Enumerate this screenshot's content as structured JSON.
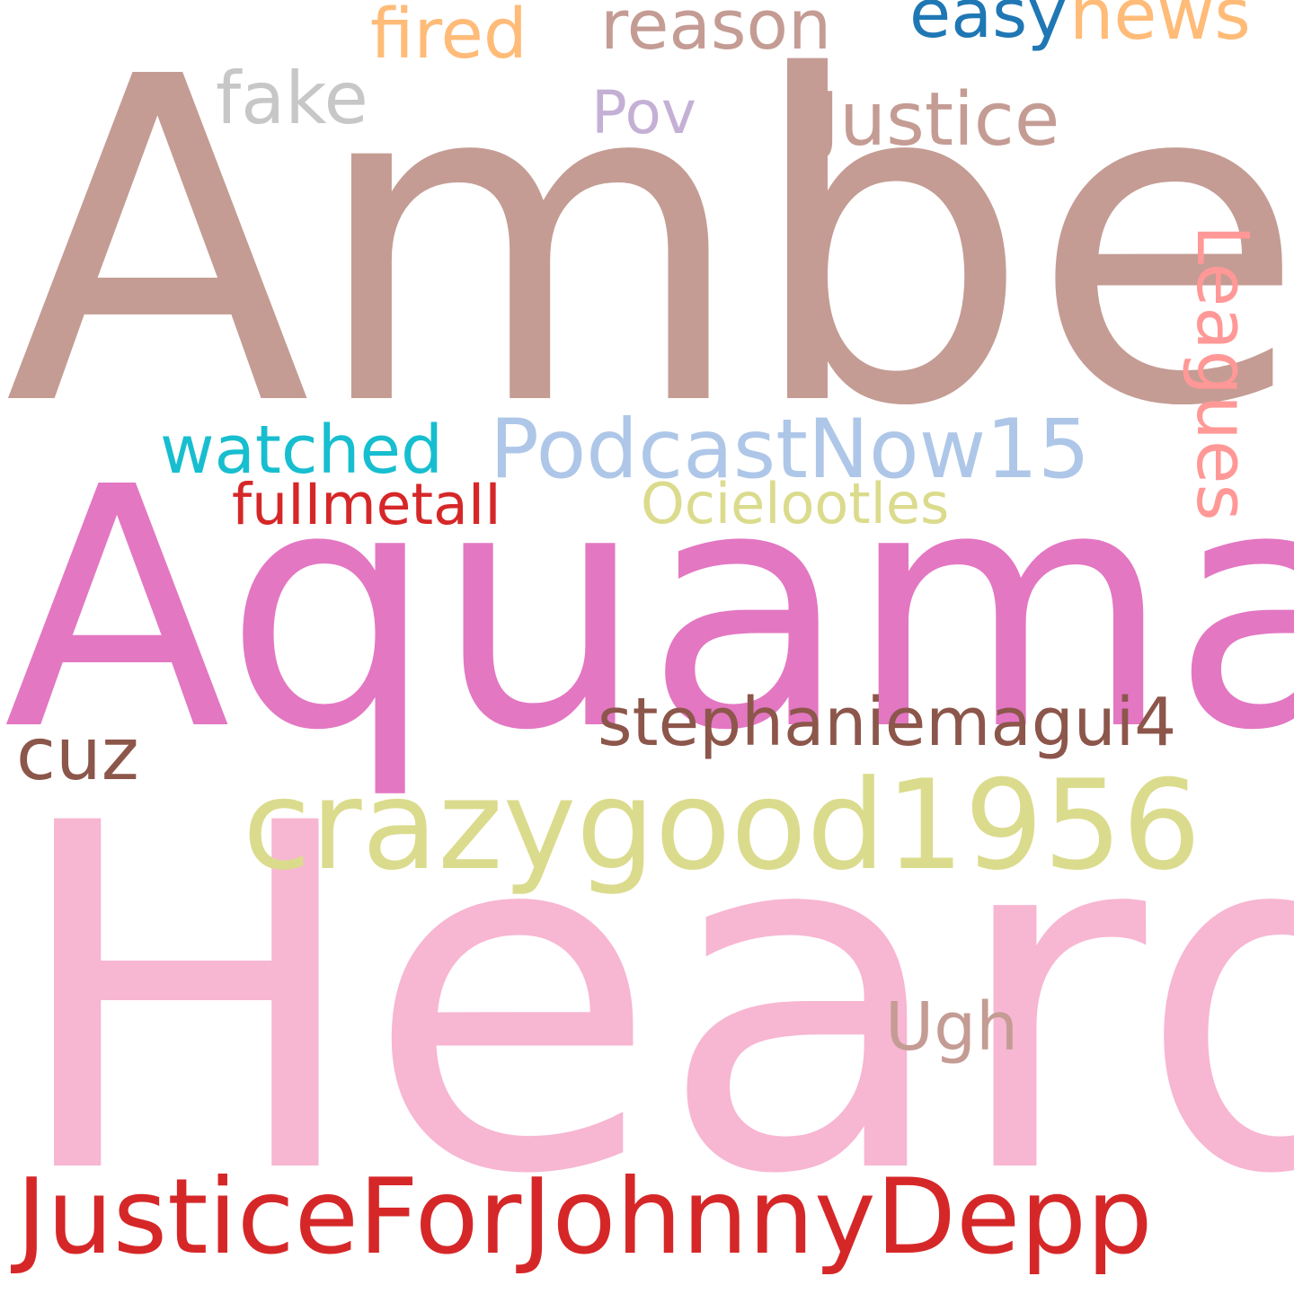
{
  "words": [
    {
      "text": "Amber",
      "color": "#c49c94"
    },
    {
      "text": "Heard",
      "color": "#f7b6d2"
    },
    {
      "text": "Aquaman",
      "color": "#e377c2"
    },
    {
      "text": "JusticeForJohnnyDepp",
      "color": "#d62728"
    },
    {
      "text": "crazygood1956",
      "color": "#dbdb8d"
    },
    {
      "text": "stephaniemagui4",
      "color": "#8c564b"
    },
    {
      "text": "PodcastNow15",
      "color": "#aec7e8"
    },
    {
      "text": "Justice",
      "color": "#c49c94"
    },
    {
      "text": "Leagues",
      "color": "#ff9896"
    },
    {
      "text": "watched",
      "color": "#17becf"
    },
    {
      "text": "fuIImetaII",
      "color": "#d62728"
    },
    {
      "text": "Ocielootles",
      "color": "#dbdb8d"
    },
    {
      "text": "fired",
      "color": "#ffbb78"
    },
    {
      "text": "reason",
      "color": "#c49c94"
    },
    {
      "text": "easy",
      "color": "#1f77b4"
    },
    {
      "text": "news",
      "color": "#ffbb78"
    },
    {
      "text": "fake",
      "color": "#c7c7c7"
    },
    {
      "text": "Pov",
      "color": "#c5b0d5"
    },
    {
      "text": "cuz",
      "color": "#8c564b"
    },
    {
      "text": "Ugh",
      "color": "#c49c94"
    }
  ]
}
